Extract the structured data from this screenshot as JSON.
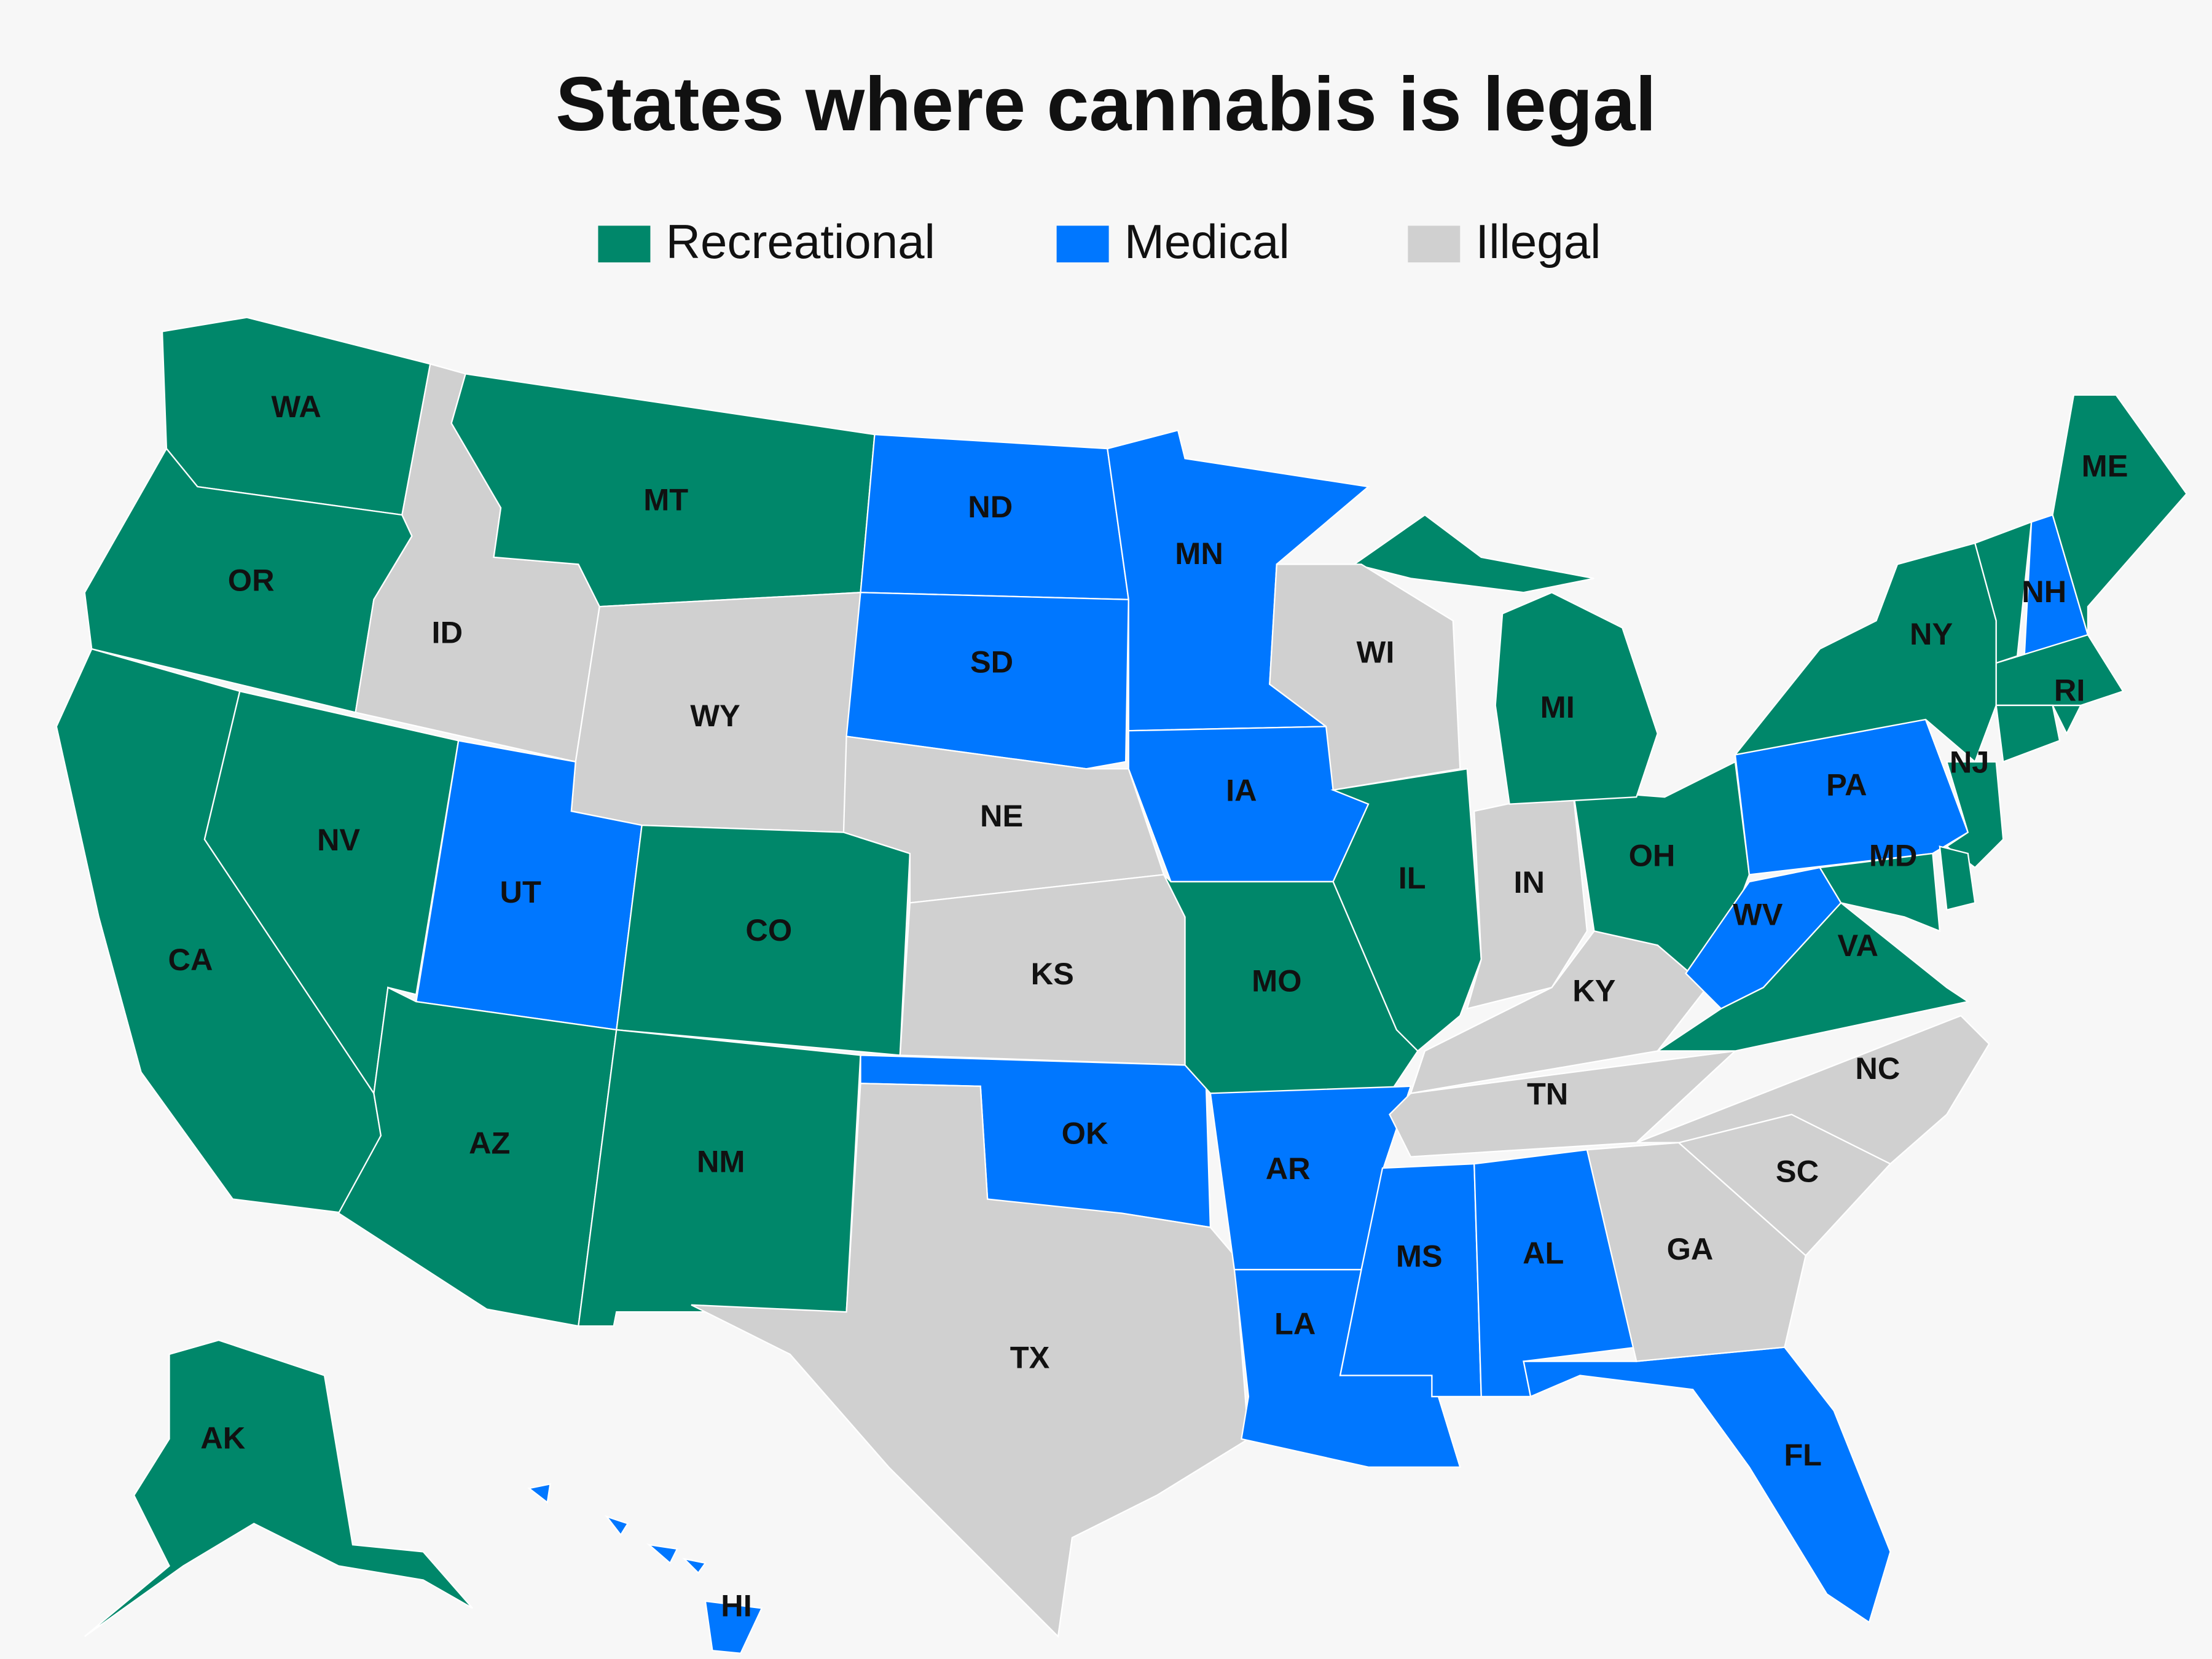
{
  "title": "States where cannabis is legal",
  "legend": [
    {
      "label": "Recreational",
      "color": "#00876a"
    },
    {
      "label": "Medical",
      "color": "#0077ff"
    },
    {
      "label": "Illegal",
      "color": "#d0d0d0"
    }
  ],
  "states": [
    {
      "label": "WA",
      "status": "Recreational"
    },
    {
      "label": "OR",
      "status": "Recreational"
    },
    {
      "label": "CA",
      "status": "Recreational"
    },
    {
      "label": "NV",
      "status": "Recreational"
    },
    {
      "label": "ID",
      "status": "Illegal"
    },
    {
      "label": "MT",
      "status": "Recreational"
    },
    {
      "label": "WY",
      "status": "Illegal"
    },
    {
      "label": "UT",
      "status": "Medical"
    },
    {
      "label": "CO",
      "status": "Recreational"
    },
    {
      "label": "AZ",
      "status": "Recreational"
    },
    {
      "label": "NM",
      "status": "Recreational"
    },
    {
      "label": "ND",
      "status": "Medical"
    },
    {
      "label": "SD",
      "status": "Medical"
    },
    {
      "label": "NE",
      "status": "Illegal"
    },
    {
      "label": "KS",
      "status": "Illegal"
    },
    {
      "label": "OK",
      "status": "Medical"
    },
    {
      "label": "TX",
      "status": "Illegal"
    },
    {
      "label": "MN",
      "status": "Medical"
    },
    {
      "label": "IA",
      "status": "Medical"
    },
    {
      "label": "MO",
      "status": "Recreational"
    },
    {
      "label": "AR",
      "status": "Medical"
    },
    {
      "label": "LA",
      "status": "Medical"
    },
    {
      "label": "MS",
      "status": "Medical"
    },
    {
      "label": "AL",
      "status": "Medical"
    },
    {
      "label": "FL",
      "status": "Medical"
    },
    {
      "label": "GA",
      "status": "Illegal"
    },
    {
      "label": "SC",
      "status": "Illegal"
    },
    {
      "label": "NC",
      "status": "Illegal"
    },
    {
      "label": "TN",
      "status": "Illegal"
    },
    {
      "label": "KY",
      "status": "Illegal"
    },
    {
      "label": "IL",
      "status": "Recreational"
    },
    {
      "label": "IN",
      "status": "Illegal"
    },
    {
      "label": "OH",
      "status": "Recreational"
    },
    {
      "label": "MI",
      "status": "Recreational"
    },
    {
      "label": "WI",
      "status": "Illegal"
    },
    {
      "label": "WV",
      "status": "Medical"
    },
    {
      "label": "VA",
      "status": "Recreational"
    },
    {
      "label": "PA",
      "status": "Medical"
    },
    {
      "label": "NY",
      "status": "Recreational"
    },
    {
      "label": "NJ",
      "status": "Recreational"
    },
    {
      "label": "MD",
      "status": "Recreational"
    },
    {
      "label": "NH",
      "status": "Medical"
    },
    {
      "label": "ME",
      "status": "Recreational"
    },
    {
      "label": "RI",
      "status": "Recreational"
    },
    {
      "label": "AK",
      "status": "Recreational"
    },
    {
      "label": "HI",
      "status": "Medical"
    },
    {
      "label": null,
      "status": "Recreational"
    },
    {
      "label": null,
      "status": "Recreational"
    },
    {
      "label": null,
      "status": "Recreational"
    },
    {
      "label": null,
      "status": "Recreational"
    }
  ]
}
